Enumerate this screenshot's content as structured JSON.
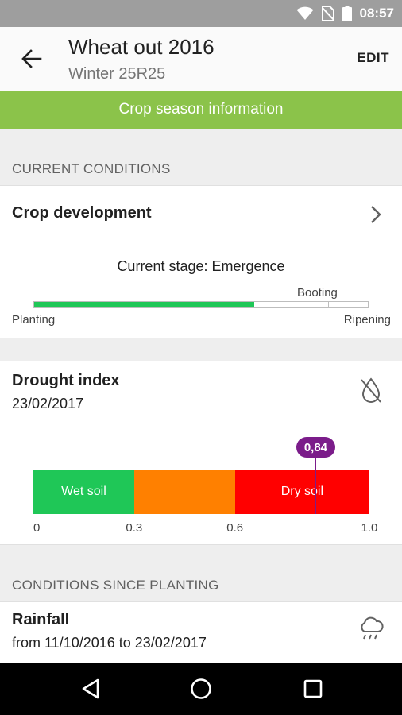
{
  "status_bar": {
    "time": "08:57",
    "icons": [
      "wifi-icon",
      "no-sim-icon",
      "battery-icon"
    ]
  },
  "app_bar": {
    "title": "Wheat out 2016",
    "subtitle": "Winter 25R25",
    "edit_label": "EDIT",
    "back_icon": "arrow-back-icon"
  },
  "banner": {
    "label": "Crop season information"
  },
  "current_conditions": {
    "header": "CURRENT CONDITIONS",
    "crop_development": {
      "title": "Crop development",
      "current_stage": "Current stage: Emergence",
      "start_label": "Planting",
      "end_label": "Ripening",
      "milestone_label": "Booting",
      "progress": 0.66,
      "milestone_position": 0.88
    },
    "drought_index": {
      "title": "Drought index",
      "date": "23/02/2017",
      "value": 0.84,
      "value_label": "0,84",
      "segments": [
        {
          "label": "Wet soil",
          "from": 0,
          "to": 0.3,
          "color": "#1fc757"
        },
        {
          "label": "",
          "from": 0.3,
          "to": 0.6,
          "color": "#ff8000"
        },
        {
          "label": "Dry soil",
          "from": 0.6,
          "to": 1.0,
          "color": "#ff0000"
        }
      ],
      "axis_labels": [
        "0",
        "0.3",
        "0.6",
        "1.0"
      ]
    }
  },
  "since_planting": {
    "header": "CONDITIONS SINCE PLANTING",
    "rainfall": {
      "title": "Rainfall",
      "range": "from 11/10/2016 to 23/02/2017"
    }
  },
  "colors": {
    "accent_green": "#8bc34a",
    "marker_purple": "#7b1c8a"
  }
}
